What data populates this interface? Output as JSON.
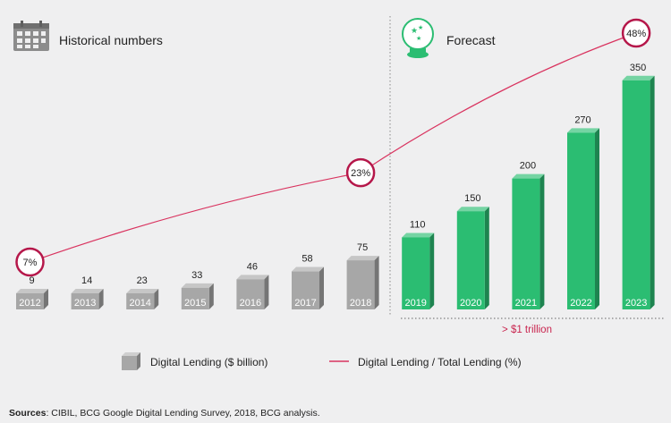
{
  "headers": {
    "historical": "Historical numbers",
    "forecast": "Forecast",
    "calendar_icon": "calendar-icon",
    "crystal_ball_icon": "crystal-ball-icon"
  },
  "chart_data": {
    "type": "bar",
    "categories": [
      "2012",
      "2013",
      "2014",
      "2015",
      "2016",
      "2017",
      "2018",
      "2019",
      "2020",
      "2021",
      "2022",
      "2023"
    ],
    "series": [
      {
        "name": "Digital Lending ($ billion)",
        "type": "bar",
        "values": [
          9,
          14,
          23,
          33,
          46,
          58,
          75,
          110,
          150,
          200,
          270,
          350
        ],
        "labels": [
          "9",
          "14",
          "23",
          "33",
          "46",
          "58",
          "75",
          "110",
          "150",
          "200",
          "270",
          "350"
        ]
      },
      {
        "name": "Digital Lending / Total Lending (%)",
        "type": "line",
        "points": [
          {
            "category": "2012",
            "value": 7,
            "label": "7%"
          },
          {
            "category": "2018",
            "value": 23,
            "label": "23%"
          },
          {
            "category": "2023",
            "value": 48,
            "label": "48%"
          }
        ]
      }
    ],
    "historical_categories": [
      "2012",
      "2013",
      "2014",
      "2015",
      "2016",
      "2017",
      "2018"
    ],
    "forecast_categories": [
      "2019",
      "2020",
      "2021",
      "2022",
      "2023"
    ],
    "annotation": "> $1 trillion",
    "colors": {
      "historical_bar": "#a7a7a7",
      "forecast_bar": "#2bbd72",
      "line": "#d9335f",
      "circle_ring": "#b5174a"
    }
  },
  "source": {
    "prefix": "Sources",
    "text": ": CIBIL, BCG Google Digital Lending Survey, 2018, BCG analysis."
  }
}
